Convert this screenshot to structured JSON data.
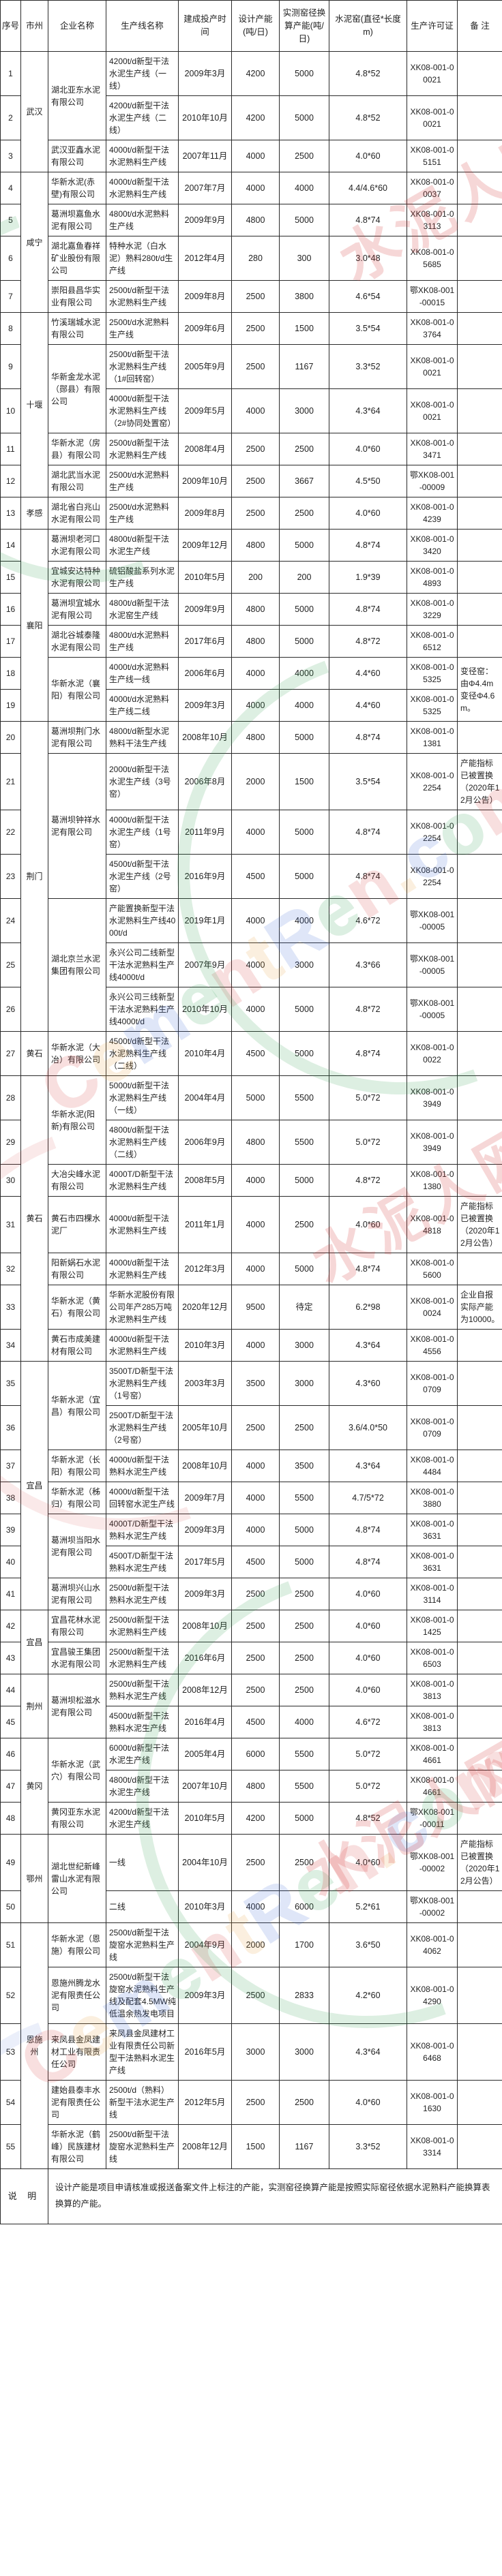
{
  "watermark": {
    "brand": "CementRen.com",
    "brand_cn": "水泥人网"
  },
  "table": {
    "headers": [
      "序号",
      "市州",
      "企业名称",
      "生产线名称",
      "建成投产时间",
      "设计产能(吨/日)",
      "实测窑径换算产能(吨/日)",
      "水泥窑(直径*长度m)",
      "生产许可证",
      "备 注"
    ],
    "rows": [
      {
        "no": "1",
        "city": "武汉",
        "city_span": 3,
        "company": "湖北亚东水泥有限公司",
        "company_span": 2,
        "line": "4200t/d新型干法水泥生产线（一线）",
        "date": "2009年3月",
        "design": "4200",
        "converted": "5000",
        "kiln": "4.8*52",
        "license": "XK08-001-00021",
        "remark": ""
      },
      {
        "no": "2",
        "line": "4200t/d新型干法水泥生产线（二线）",
        "date": "2010年10月",
        "design": "4200",
        "converted": "5000",
        "kiln": "4.8*52",
        "license": "XK08-001-00021",
        "remark": ""
      },
      {
        "no": "3",
        "company": "武汉亚鑫水泥有限公司",
        "line": "4000t/d新型干法水泥熟料生产线",
        "date": "2007年11月",
        "design": "4000",
        "converted": "2500",
        "kiln": "4.0*60",
        "license": "XK08-001-05151",
        "remark": ""
      },
      {
        "no": "4",
        "city": "咸宁",
        "city_span": 4,
        "company": "华新水泥(赤壁)有限公司",
        "line": "4000t/d新型干法水泥熟料生产线",
        "date": "2007年7月",
        "design": "4000",
        "converted": "4000",
        "kiln": "4.4/4.6*60",
        "license": "XK08-001-00037",
        "remark": ""
      },
      {
        "no": "5",
        "company": "葛洲坝嘉鱼水泥有限公司",
        "line": "4800t/d水泥熟料生产线",
        "date": "2009年9月",
        "design": "4800",
        "converted": "5000",
        "kiln": "4.8*74",
        "license": "XK08-001-03113",
        "remark": ""
      },
      {
        "no": "6",
        "company": "湖北嘉鱼春祥矿业股份有限公司",
        "line": "特种水泥（白水泥）熟料280t/d生产线",
        "date": "2012年4月",
        "design": "280",
        "converted": "300",
        "kiln": "3.0*48",
        "license": "XK08-001-05685",
        "remark": ""
      },
      {
        "no": "7",
        "company": "崇阳县昌华实业有限公司",
        "line": "2500t/d新型干法水泥熟料生产线",
        "date": "2009年8月",
        "design": "2500",
        "converted": "3800",
        "kiln": "4.6*54",
        "license": "鄂XK08-001-00015",
        "remark": ""
      },
      {
        "no": "8",
        "city": "十堰",
        "city_span": 5,
        "company": "竹溪瑞城水泥有限公司",
        "line": "2500t/d水泥熟料生产线",
        "date": "2009年6月",
        "design": "2500",
        "converted": "1500",
        "kiln": "3.5*54",
        "license": "XK08-001-03764",
        "remark": ""
      },
      {
        "no": "9",
        "company": "华新金龙水泥（郧县）有限公司",
        "company_span": 2,
        "line": "2500t/d新型干法水泥熟料生产线（1#回转窑）",
        "date": "2005年9月",
        "design": "2500",
        "converted": "1167",
        "kiln": "3.3*52",
        "license": "XK08-001-00021",
        "remark": ""
      },
      {
        "no": "10",
        "line": "4000t/d新型干法水泥熟料生产线（2#协同处置窑）",
        "date": "2009年5月",
        "design": "4000",
        "converted": "3000",
        "kiln": "4.3*64",
        "license": "XK08-001-00021",
        "remark": ""
      },
      {
        "no": "11",
        "company": "华新水泥（房县）有限公司",
        "line": "2500t/d新型干法水泥熟料生产线",
        "date": "2008年4月",
        "design": "2500",
        "converted": "2500",
        "kiln": "4.0*60",
        "license": "XK08-001-03471",
        "remark": ""
      },
      {
        "no": "12",
        "company": "湖北武当水泥有限公司",
        "line": "2500t/d水泥熟料生产线",
        "date": "2009年10月",
        "design": "2500",
        "converted": "3667",
        "kiln": "4.5*50",
        "license": "鄂XK08-001-00009",
        "remark": ""
      },
      {
        "no": "13",
        "city": "孝感",
        "city_span": 1,
        "company": "湖北省白兆山水泥有限公司",
        "line": "2500t/d水泥熟料生产线",
        "date": "2009年8月",
        "design": "2500",
        "converted": "2500",
        "kiln": "4.0*60",
        "license": "XK08-001-04239",
        "remark": ""
      },
      {
        "no": "14",
        "city": "襄阳",
        "city_span": 6,
        "company": "葛洲坝老河口水泥有限公司",
        "line": "4800t/d新型干法水泥生产线",
        "date": "2009年12月",
        "design": "4800",
        "converted": "5000",
        "kiln": "4.8*74",
        "license": "XK08-001-03420",
        "remark": ""
      },
      {
        "no": "15",
        "company": "宜城安达特种水泥有限公司",
        "line": "硫铝酸盐系列水泥生产线",
        "date": "2010年5月",
        "design": "200",
        "converted": "200",
        "kiln": "1.9*39",
        "license": "XK08-001-04893",
        "remark": ""
      },
      {
        "no": "16",
        "company": "葛洲坝宜城水泥有限公司",
        "line": "4800t/d新型干法水泥窑生产线",
        "date": "2009年9月",
        "design": "4800",
        "converted": "5000",
        "kiln": "4.8*74",
        "license": "XK08-001-03229",
        "remark": ""
      },
      {
        "no": "17",
        "company": "湖北谷城泰隆水泥有限公司",
        "line": "4800t/d水泥熟料生产线",
        "date": "2017年6月",
        "design": "4800",
        "converted": "5000",
        "kiln": "4.8*72",
        "license": "XK08-001-06512",
        "remark": ""
      },
      {
        "no": "18",
        "company": "华新水泥（襄阳）有限公司",
        "company_span": 2,
        "line": "4000t/d水泥熟料生产线一线",
        "date": "2006年6月",
        "design": "4000",
        "converted": "4000",
        "kiln": "4.4*60",
        "license": "XK08-001-05325",
        "remark": "变径窑：由Φ4.4m变径Φ4.6m。",
        "remark_span": 2
      },
      {
        "no": "19",
        "line": "4000t/d水泥熟料生产线二线",
        "date": "2009年3月",
        "design": "4000",
        "converted": "4000",
        "kiln": "4.4*60",
        "license": "XK08-001-05325"
      },
      {
        "no": "20",
        "city": "荆门",
        "city_span": 7,
        "company": "葛洲坝荆门水泥有限公司",
        "line": "4800t/d新型水泥熟料干法生产线",
        "date": "2008年10月",
        "design": "4800",
        "converted": "5000",
        "kiln": "4.8*74",
        "license": "XK08-001-01381",
        "remark": ""
      },
      {
        "no": "21",
        "company": "葛洲坝钟祥水泥有限公司",
        "company_span": 3,
        "line": "2000t/d新型干法水泥生产线（3号窑）",
        "date": "2006年8月",
        "design": "2000",
        "converted": "1500",
        "kiln": "3.5*54",
        "license": "XK08-001-02254",
        "remark": "产能指标已被置换（2020年12月公告）"
      },
      {
        "no": "22",
        "line": "4000t/d新型干法水泥生产线（1号窑）",
        "date": "2011年9月",
        "design": "4000",
        "converted": "5000",
        "kiln": "4.8*74",
        "license": "XK08-001-02254",
        "remark": ""
      },
      {
        "no": "23",
        "line": "4500t/d新型干法水泥生产线（2号窑）",
        "date": "2016年9月",
        "design": "4500",
        "converted": "5000",
        "kiln": "4.8*74",
        "license": "XK08-001-02254",
        "remark": ""
      },
      {
        "no": "24",
        "company": "湖北京兰水泥集团有限公司",
        "company_span": 3,
        "line": "产能置换新型干法水泥熟料生产线4000t/d",
        "date": "2019年1月",
        "design": "4000",
        "converted": "4000",
        "kiln": "4.6*72",
        "license": "鄂XK08-001-00005",
        "remark": ""
      },
      {
        "no": "25",
        "line": "永兴公司二线新型干法水泥熟料生产线4000t/d",
        "date": "2007年9月",
        "design": "4000",
        "converted": "3000",
        "kiln": "4.3*66",
        "license": "鄂XK08-001-00005",
        "remark": ""
      },
      {
        "no": "26",
        "line": "永兴公司三线新型干法水泥熟料生产线4000t/d",
        "date": "2010年10月",
        "design": "4000",
        "converted": "5000",
        "kiln": "4.8*72",
        "license": "鄂XK08-001-00005",
        "remark": ""
      },
      {
        "no": "27",
        "city": "黄石",
        "city_span": 1,
        "company": "华新水泥（大冶）有限公司",
        "line": "4500t/d新型干法水泥熟料生产线（二线）",
        "date": "2010年4月",
        "design": "4500",
        "converted": "5000",
        "kiln": "4.8*74",
        "license": "XK08-001-00022",
        "remark": ""
      },
      {
        "no": "28",
        "city": "黄石",
        "city_span": 7,
        "company": "华新水泥(阳新)有限公司",
        "company_span": 2,
        "line": "5000t/d新型干法水泥熟料生产线（一线）",
        "date": "2004年4月",
        "design": "5000",
        "converted": "5500",
        "kiln": "5.0*72",
        "license": "XK08-001-03949",
        "remark": ""
      },
      {
        "no": "29",
        "line": "4800t/d新型干法水泥熟料生产线（二线）",
        "date": "2006年9月",
        "design": "4800",
        "converted": "5500",
        "kiln": "5.0*72",
        "license": "XK08-001-03949",
        "remark": ""
      },
      {
        "no": "30",
        "company": "大冶尖峰水泥有限公司",
        "line": "4000T/D新型干法水泥熟料生产线",
        "date": "2008年5月",
        "design": "4000",
        "converted": "5000",
        "kiln": "4.8*72",
        "license": "XK08-001-01380",
        "remark": ""
      },
      {
        "no": "31",
        "company": "黄石市四棵水泥厂",
        "line": "4000t/d新型干法水泥熟料生产线",
        "date": "2011年1月",
        "design": "4000",
        "converted": "2500",
        "kiln": "4.0*60",
        "license": "XK08-001-04818",
        "remark": "产能指标已被置换（2020年12月公告）"
      },
      {
        "no": "32",
        "company": "阳新娲石水泥有限公司",
        "line": "4000t/d新型干法水泥熟料生产线",
        "date": "2012年3月",
        "design": "4000",
        "converted": "5000",
        "kiln": "4.8*74",
        "license": "XK08-001-05600",
        "remark": ""
      },
      {
        "no": "33",
        "company": "华新水泥（黄石）有限公司",
        "line": "华新水泥股份有限公司年产285万吨水泥熟料生产线",
        "date": "2020年12月",
        "design": "9500",
        "converted": "待定",
        "kiln": "6.2*98",
        "license": "XK08-001-00024",
        "remark": "企业自报实际产能为10000。"
      },
      {
        "no": "34",
        "company": "黄石市成美建材有限公司",
        "line": "4000t/d新型干法水泥熟料生产线",
        "date": "2010年3月",
        "design": "4000",
        "converted": "3000",
        "kiln": "4.3*64",
        "license": "XK08-001-04556",
        "remark": ""
      },
      {
        "no": "35",
        "city": "宜昌",
        "city_span": 7,
        "company": "华新水泥（宜昌）有限公司",
        "company_span": 2,
        "line": "3500T/D新型干法水泥熟料生产线（1号窑）",
        "date": "2003年3月",
        "design": "3500",
        "converted": "3000",
        "kiln": "4.3*60",
        "license": "XK08-001-00709",
        "remark": ""
      },
      {
        "no": "36",
        "line": "2500T/D新型干法水泥熟料生产线（2号窑）",
        "date": "2005年10月",
        "design": "2500",
        "converted": "2500",
        "kiln": "3.6/4.0*50",
        "license": "XK08-001-00709",
        "remark": ""
      },
      {
        "no": "37",
        "company": "华新水泥（长阳）有限公司",
        "line": "4000t/d新型干法熟料水泥生产线",
        "date": "2008年10月",
        "design": "4000",
        "converted": "3500",
        "kiln": "4.3*64",
        "license": "XK08-001-04484",
        "remark": ""
      },
      {
        "no": "38",
        "company": "华新水泥（秭归）有限公司",
        "line": "4000t/d新型干法回转窑水泥生产线",
        "date": "2009年7月",
        "design": "4000",
        "converted": "5500",
        "kiln": "4.7/5*72",
        "license": "XK08-001-03880",
        "remark": ""
      },
      {
        "no": "39",
        "company": "葛洲坝当阳水泥有限公司",
        "company_span": 2,
        "line": "4000T/D新型干法熟料水泥生产线",
        "date": "2009年3月",
        "design": "4000",
        "converted": "5000",
        "kiln": "4.8*74",
        "license": "XK08-001-03631",
        "remark": ""
      },
      {
        "no": "40",
        "line": "4500T/D新型干法熟料水泥生产线",
        "date": "2017年5月",
        "design": "4500",
        "converted": "5000",
        "kiln": "4.8*74",
        "license": "XK08-001-03631",
        "remark": ""
      },
      {
        "no": "41",
        "company": "葛洲坝兴山水泥有限公司",
        "line": "2500t/d新型干法熟料水泥生产线",
        "date": "2009年3月",
        "design": "2500",
        "converted": "2500",
        "kiln": "4.0*60",
        "license": "XK08-001-03114",
        "remark": ""
      },
      {
        "no": "42",
        "city": "宜昌",
        "city_span": 2,
        "company": "宜昌花林水泥有限公司",
        "line": "2500t/d新型干法水泥熟料生产线",
        "date": "2008年10月",
        "design": "2500",
        "converted": "2500",
        "kiln": "4.0*60",
        "license": "XK08-001-01425",
        "remark": ""
      },
      {
        "no": "43",
        "company": "宜昌骏王集团水泥有限公司",
        "line": "2500t/d新型干法水泥熟料生产线",
        "date": "2016年6月",
        "design": "2500",
        "converted": "2500",
        "kiln": "4.0*60",
        "license": "XK08-001-06503",
        "remark": ""
      },
      {
        "no": "44",
        "city": "荆州",
        "city_span": 2,
        "company": "葛洲坝松滋水泥有限公司",
        "company_span": 2,
        "line": "2500t/d新型干法熟料水泥生产线",
        "date": "2008年12月",
        "design": "2500",
        "converted": "2500",
        "kiln": "4.0*60",
        "license": "XK08-001-03813",
        "remark": ""
      },
      {
        "no": "45",
        "line": "4500t/d新型干法熟料水泥生产线",
        "date": "2016年4月",
        "design": "4500",
        "converted": "4000",
        "kiln": "4.6*72",
        "license": "XK08-001-03813",
        "remark": ""
      },
      {
        "no": "46",
        "city": "黄冈",
        "city_span": 3,
        "company": "华新水泥（武穴）有限公司",
        "company_span": 2,
        "line": "6000t/d新型干法水泥生产线",
        "date": "2005年4月",
        "design": "6000",
        "converted": "5500",
        "kiln": "5.0*72",
        "license": "XK08-001-04661",
        "remark": ""
      },
      {
        "no": "47",
        "line": "4800t/d新型干法水泥生产线",
        "date": "2007年10月",
        "design": "4800",
        "converted": "5500",
        "kiln": "5.0*72",
        "license": "XK08-001-04661",
        "remark": ""
      },
      {
        "no": "48",
        "company": "黄冈亚东水泥有限公司",
        "line": "4200t/d新型干法水泥生产线",
        "date": "2010年5月",
        "design": "4200",
        "converted": "5000",
        "kiln": "4.8*52",
        "license": "鄂XK08-001-00011",
        "remark": ""
      },
      {
        "no": "49",
        "city": "鄂州",
        "city_span": 2,
        "company": "湖北世纪新峰雷山水泥有限公司",
        "company_span": 2,
        "line": "一线",
        "date": "2004年10月",
        "design": "2500",
        "converted": "2500",
        "kiln": "4.0*60",
        "license": "鄂XK08-001-00002",
        "remark": "产能指标已被置换（2020年12月公告）"
      },
      {
        "no": "50",
        "line": "二线",
        "date": "2010年3月",
        "design": "4000",
        "converted": "6000",
        "kiln": "5.2*61",
        "license": "鄂XK08-001-00002",
        "remark": ""
      },
      {
        "no": "51",
        "city": "恩施州",
        "city_span": 5,
        "company": "华新水泥（恩施）有限公司",
        "line": "2500t/d新型干法旋窑水泥熟料生产线",
        "date": "2004年9月",
        "design": "2000",
        "converted": "1700",
        "kiln": "3.6*50",
        "license": "XK08-001-04062",
        "remark": ""
      },
      {
        "no": "52",
        "company": "恩施州腾龙水泥有限责任公司",
        "line": "2500t/d新型干法旋窑水泥熟料生产线及配套4.5MW纯低温余热发电项目",
        "date": "2009年3月",
        "design": "2500",
        "converted": "2833",
        "kiln": "4.2*60",
        "license": "XK08-001-04290",
        "remark": ""
      },
      {
        "no": "53",
        "company": "来凤县金凤建材工业有限责任公司",
        "line": "来凤县金凤建材工业有限责任公司新型干法熟料水泥生产线",
        "date": "2016年5月",
        "design": "3000",
        "converted": "3000",
        "kiln": "4.3*64",
        "license": "XK08-001-06468",
        "remark": ""
      },
      {
        "no": "54",
        "company": "建始县泰丰水泥有限责任公司",
        "line": "2500t/d（熟料）新型干法水泥生产线",
        "date": "2012年5月",
        "design": "2500",
        "converted": "2500",
        "kiln": "4.0*60",
        "license": "XK08-001-01630",
        "remark": ""
      },
      {
        "no": "55",
        "company": "华新水泥（鹤峰）民族建材有限公司",
        "line": "2500t/d新型干法旋窑水泥熟料生产线",
        "date": "2008年12月",
        "design": "1500",
        "converted": "1167",
        "kiln": "3.3*52",
        "license": "XK08-001-03314",
        "remark": ""
      }
    ],
    "note_label": "说  明",
    "note_text": "设计产能是项目申请核准或报送备案文件上标注的产能，实测窑径换算产能是按照实际窑径依据水泥熟料产能换算表换算的产能。"
  }
}
